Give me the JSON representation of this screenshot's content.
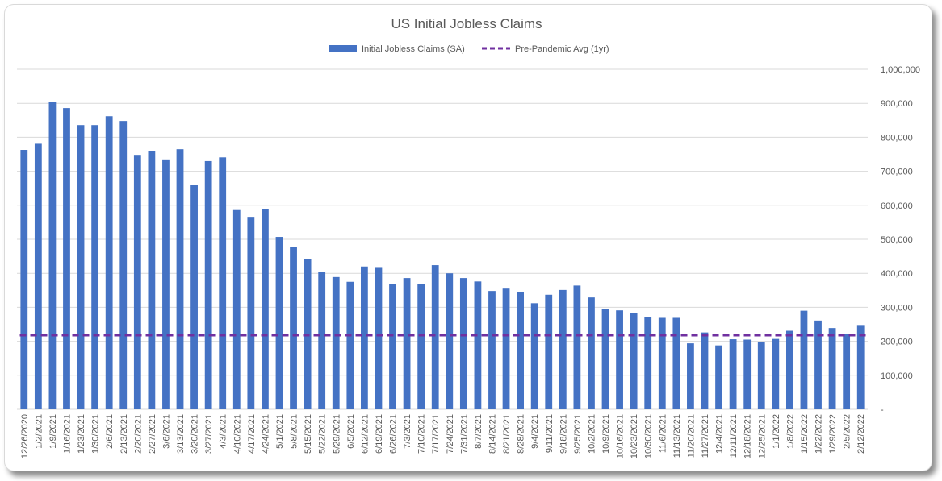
{
  "chart_data": {
    "type": "bar",
    "title": "US Initial Jobless Claims",
    "categories": [
      "12/26/2020",
      "1/2/2021",
      "1/9/2021",
      "1/16/2021",
      "1/23/2021",
      "1/30/2021",
      "2/6/2021",
      "2/13/2021",
      "2/20/2021",
      "2/27/2021",
      "3/6/2021",
      "3/13/2021",
      "3/20/2021",
      "3/27/2021",
      "4/3/2021",
      "4/10/2021",
      "4/17/2021",
      "4/24/2021",
      "5/1/2021",
      "5/8/2021",
      "5/15/2021",
      "5/22/2021",
      "5/29/2021",
      "6/5/2021",
      "6/12/2021",
      "6/19/2021",
      "6/26/2021",
      "7/3/2021",
      "7/10/2021",
      "7/17/2021",
      "7/24/2021",
      "7/31/2021",
      "8/7/2021",
      "8/14/2021",
      "8/21/2021",
      "8/28/2021",
      "9/4/2021",
      "9/11/2021",
      "9/18/2021",
      "9/25/2021",
      "10/2/2021",
      "10/9/2021",
      "10/16/2021",
      "10/23/2021",
      "10/30/2021",
      "11/6/2021",
      "11/13/2021",
      "11/20/2021",
      "11/27/2021",
      "12/4/2021",
      "12/11/2021",
      "12/18/2021",
      "12/25/2021",
      "1/1/2022",
      "1/8/2022",
      "1/15/2022",
      "1/22/2022",
      "1/29/2022",
      "2/5/2022",
      "2/12/2022"
    ],
    "series": [
      {
        "name": "Initial Jobless Claims (SA)",
        "color": "#4472c4",
        "values": [
          763000,
          781000,
          904000,
          886000,
          836000,
          836000,
          862000,
          848000,
          746000,
          760000,
          735000,
          765000,
          659000,
          730000,
          741000,
          586000,
          566000,
          590000,
          507000,
          478000,
          443000,
          405000,
          389000,
          375000,
          420000,
          416000,
          368000,
          386000,
          368000,
          424000,
          400000,
          386000,
          376000,
          348000,
          355000,
          346000,
          312000,
          337000,
          351000,
          364000,
          329000,
          296000,
          291000,
          284000,
          272000,
          269000,
          269000,
          194000,
          226000,
          188000,
          206000,
          205000,
          199000,
          207000,
          231000,
          290000,
          261000,
          239000,
          222000,
          248000
        ]
      },
      {
        "name": "Pre-Pandemic Avg (1yr)",
        "color": "#7030a0",
        "style": "dashed",
        "constant": 218000
      }
    ],
    "yaxis": {
      "position": "right",
      "ylim": [
        0,
        1000000
      ],
      "ticks": [
        0,
        100000,
        200000,
        300000,
        400000,
        500000,
        600000,
        700000,
        800000,
        900000,
        1000000
      ],
      "tick_labels": [
        "-",
        "100,000",
        "200,000",
        "300,000",
        "400,000",
        "500,000",
        "600,000",
        "700,000",
        "800,000",
        "900,000",
        "1,000,000"
      ]
    },
    "legend_position": "top-center",
    "grid": true
  }
}
